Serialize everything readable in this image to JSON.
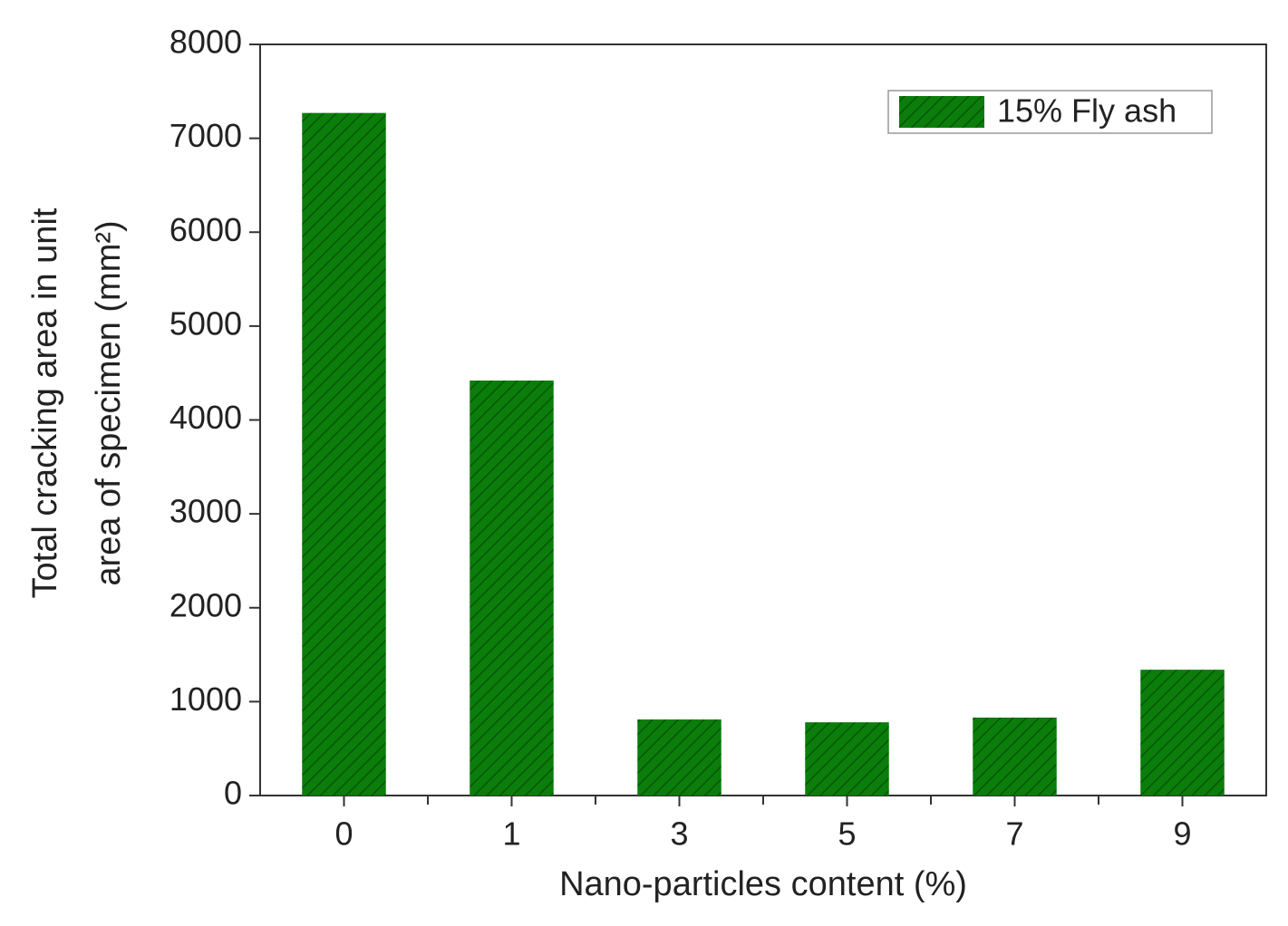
{
  "chart_data": {
    "type": "bar",
    "x_label": "Nano-particles content (%)",
    "y_label": [
      "Total cracking area in unit",
      "area of specimen (mm²)"
    ],
    "categories": [
      "0",
      "1",
      "3",
      "5",
      "7",
      "9"
    ],
    "series": [
      {
        "name": "15% Fly ash",
        "color": "#0b7d0b",
        "values": [
          7270,
          4420,
          810,
          780,
          830,
          1340
        ]
      }
    ],
    "ylim": [
      0,
      8000
    ],
    "yticks": [
      0,
      1000,
      2000,
      3000,
      4000,
      5000,
      6000,
      7000,
      8000
    ],
    "legend": "upper right",
    "hatch": true
  }
}
